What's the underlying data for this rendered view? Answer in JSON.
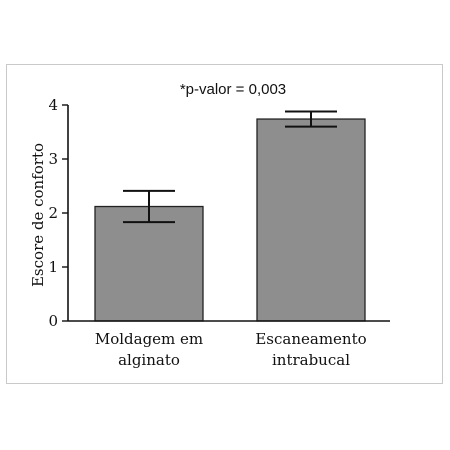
{
  "chart_data": {
    "type": "bar",
    "annotation": "*p-valor = 0,003",
    "ylabel": "Escore de conforto",
    "categories": [
      [
        "Moldagem em",
        "alginato"
      ],
      [
        "Escaneamento",
        "intrabucal"
      ]
    ],
    "values": [
      2.12,
      3.74
    ],
    "error": [
      0.29,
      0.14
    ],
    "ylim": [
      0,
      4
    ],
    "yticks": [
      "0",
      "1",
      "2",
      "3",
      "4"
    ],
    "grid": false,
    "bar_color": "#8e8e8e",
    "bar_edge_color": "#222222"
  }
}
